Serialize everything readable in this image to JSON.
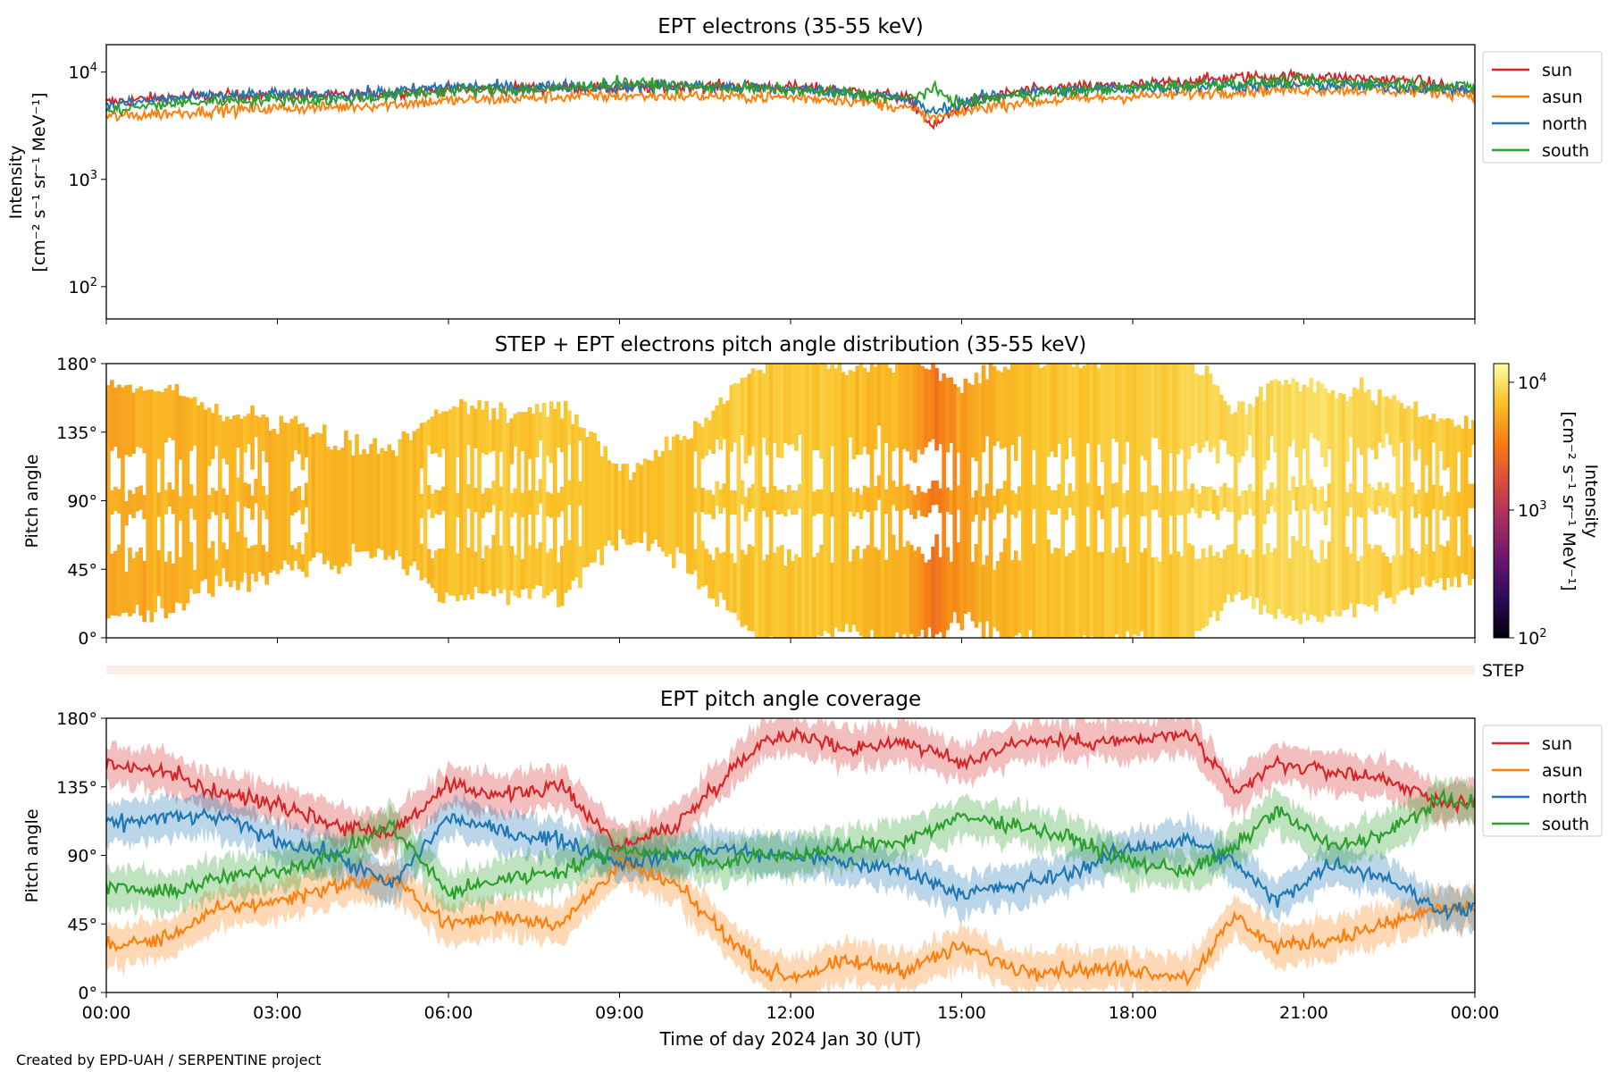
{
  "figure": {
    "footer": "Created by EPD-UAH / SERPENTINE project",
    "xlabel": "Time of day 2024 Jan 30 (UT)",
    "xticks": [
      "00:00",
      "03:00",
      "06:00",
      "09:00",
      "12:00",
      "15:00",
      "18:00",
      "21:00",
      "00:00"
    ]
  },
  "chart_data": [
    {
      "type": "line",
      "title": "EPT electrons (35-55 keV)",
      "ylabel_line1": "Intensity",
      "ylabel_line2": "[cm⁻² s⁻¹ sr⁻¹ MeV⁻¹]",
      "yscale": "log",
      "ylim": [
        50,
        18000
      ],
      "yticks": [
        {
          "base": "10",
          "exp": "2",
          "value": 100
        },
        {
          "base": "10",
          "exp": "3",
          "value": 1000
        },
        {
          "base": "10",
          "exp": "4",
          "value": 10000
        }
      ],
      "xlim_hours": [
        0,
        24
      ],
      "legend_position": "outside-right",
      "series": [
        {
          "name": "sun",
          "color": "#d62728",
          "hours": [
            0,
            1,
            2,
            3,
            4,
            5,
            6,
            7,
            8,
            9,
            10,
            11,
            12,
            13,
            14,
            14.5,
            15,
            15.5,
            16,
            17,
            18,
            19,
            20,
            21,
            22,
            23,
            24
          ],
          "values": [
            5200,
            5800,
            6000,
            6100,
            6000,
            6400,
            6900,
            7000,
            7200,
            7100,
            7300,
            7400,
            7200,
            6700,
            5800,
            3000,
            4800,
            5800,
            6600,
            7200,
            7500,
            8300,
            9000,
            9100,
            8700,
            8200,
            6500
          ]
        },
        {
          "name": "asun",
          "color": "#ff7f0e",
          "hours": [
            0,
            1,
            2,
            3,
            4,
            5,
            6,
            7,
            8,
            9,
            10,
            11,
            12,
            13,
            14,
            14.5,
            15,
            15.5,
            16,
            17,
            18,
            19,
            20,
            21,
            22,
            23,
            24
          ],
          "values": [
            3800,
            4100,
            4400,
            4600,
            4700,
            5000,
            5400,
            5600,
            5900,
            6000,
            6000,
            5900,
            5800,
            5500,
            4700,
            3700,
            4200,
            4800,
            5200,
            5600,
            5900,
            6300,
            6700,
            6900,
            6800,
            6600,
            6200
          ]
        },
        {
          "name": "north",
          "color": "#1f77b4",
          "hours": [
            0,
            1,
            2,
            3,
            4,
            5,
            6,
            7,
            8,
            9,
            10,
            11,
            12,
            13,
            14,
            14.5,
            15,
            15.5,
            16,
            17,
            18,
            19,
            20,
            21,
            22,
            23,
            24
          ],
          "values": [
            4800,
            5600,
            6000,
            6200,
            6100,
            6500,
            7400,
            7200,
            7400,
            7300,
            7500,
            7200,
            7000,
            6500,
            5600,
            4200,
            5200,
            6000,
            6400,
            6800,
            7100,
            7400,
            7500,
            7600,
            7400,
            7200,
            6800
          ]
        },
        {
          "name": "south",
          "color": "#2ca02c",
          "hours": [
            0,
            1,
            2,
            3,
            4,
            5,
            6,
            7,
            8,
            9,
            10,
            11,
            12,
            13,
            14,
            14.5,
            15,
            15.5,
            16,
            17,
            18,
            19,
            20,
            21,
            22,
            23,
            24
          ],
          "values": [
            4300,
            5000,
            5400,
            5600,
            5500,
            6000,
            6700,
            6800,
            7000,
            8000,
            7400,
            7100,
            6800,
            6300,
            5600,
            6800,
            5000,
            5600,
            6100,
            6700,
            7100,
            7600,
            8000,
            8200,
            8000,
            7700,
            7200
          ]
        }
      ]
    },
    {
      "type": "heatmap",
      "title": "STEP + EPT electrons pitch angle distribution (35-55 keV)",
      "ylabel": "Pitch angle",
      "yticks": [
        "0°",
        "45°",
        "90°",
        "135°",
        "180°"
      ],
      "ylim": [
        0,
        180
      ],
      "colorbar": {
        "label_line1": "Intensity",
        "label_line2": "[cm⁻² s⁻¹ sr⁻¹ MeV⁻¹]",
        "scale": "log",
        "range": [
          100,
          14000
        ],
        "ticks": [
          {
            "base": "10",
            "exp": "2",
            "value": 100
          },
          {
            "base": "10",
            "exp": "3",
            "value": 1000
          },
          {
            "base": "10",
            "exp": "4",
            "value": 10000
          }
        ],
        "stops": [
          "#000004",
          "#2d0a5b",
          "#6a176e",
          "#a52c60",
          "#d94e3d",
          "#f57d15",
          "#fac127",
          "#fcffa4"
        ]
      },
      "step_label": "STEP"
    },
    {
      "type": "line",
      "title": "EPT pitch angle coverage",
      "ylabel": "Pitch angle",
      "yticks": [
        "0°",
        "45°",
        "90°",
        "135°",
        "180°"
      ],
      "ylim": [
        0,
        180
      ],
      "xlim_hours": [
        0,
        24
      ],
      "legend_position": "outside-right",
      "series": [
        {
          "name": "sun",
          "color": "#d62728",
          "hours": [
            0,
            1,
            2,
            3,
            4,
            5,
            6,
            7,
            8,
            9,
            10,
            10.8,
            11.5,
            12,
            13,
            14,
            15,
            16,
            17,
            18,
            19,
            19.8,
            20.5,
            21.5,
            22.5,
            23.3,
            24
          ],
          "values": [
            150,
            145,
            130,
            125,
            110,
            105,
            135,
            130,
            135,
            95,
            110,
            140,
            165,
            170,
            160,
            165,
            150,
            165,
            165,
            165,
            170,
            130,
            150,
            145,
            140,
            125,
            125
          ]
        },
        {
          "name": "asun",
          "color": "#ff7f0e",
          "hours": [
            0,
            1,
            2,
            3,
            4,
            5,
            6,
            7,
            8,
            9,
            10,
            10.8,
            11.5,
            12,
            13,
            14,
            15,
            16,
            17,
            18,
            19,
            19.8,
            20.5,
            21.5,
            22.5,
            23.3,
            24
          ],
          "values": [
            30,
            35,
            55,
            60,
            70,
            75,
            45,
            50,
            45,
            85,
            70,
            40,
            15,
            10,
            20,
            15,
            30,
            15,
            15,
            15,
            10,
            50,
            30,
            35,
            45,
            55,
            55
          ]
        },
        {
          "name": "north",
          "color": "#1f77b4",
          "hours": [
            0,
            1,
            2,
            3,
            4,
            5,
            6,
            7,
            8,
            9,
            10,
            10.8,
            11.5,
            12,
            13,
            14,
            15,
            16,
            17,
            18,
            19,
            19.8,
            20.5,
            21.5,
            22.5,
            23.3,
            24
          ],
          "values": [
            110,
            115,
            115,
            100,
            90,
            70,
            115,
            105,
            100,
            85,
            90,
            95,
            90,
            90,
            85,
            80,
            65,
            70,
            80,
            95,
            100,
            85,
            60,
            85,
            75,
            55,
            55
          ]
        },
        {
          "name": "south",
          "color": "#2ca02c",
          "hours": [
            0,
            1,
            2,
            3,
            4,
            5,
            6,
            7,
            8,
            9,
            10,
            10.8,
            11.5,
            12,
            13,
            14,
            15,
            16,
            17,
            18,
            19,
            19.8,
            20.5,
            21.5,
            22.5,
            23.3,
            24
          ],
          "values": [
            70,
            65,
            75,
            80,
            90,
            110,
            65,
            75,
            80,
            95,
            90,
            85,
            90,
            90,
            95,
            100,
            115,
            110,
            100,
            85,
            80,
            95,
            120,
            95,
            105,
            125,
            125
          ]
        }
      ]
    }
  ]
}
